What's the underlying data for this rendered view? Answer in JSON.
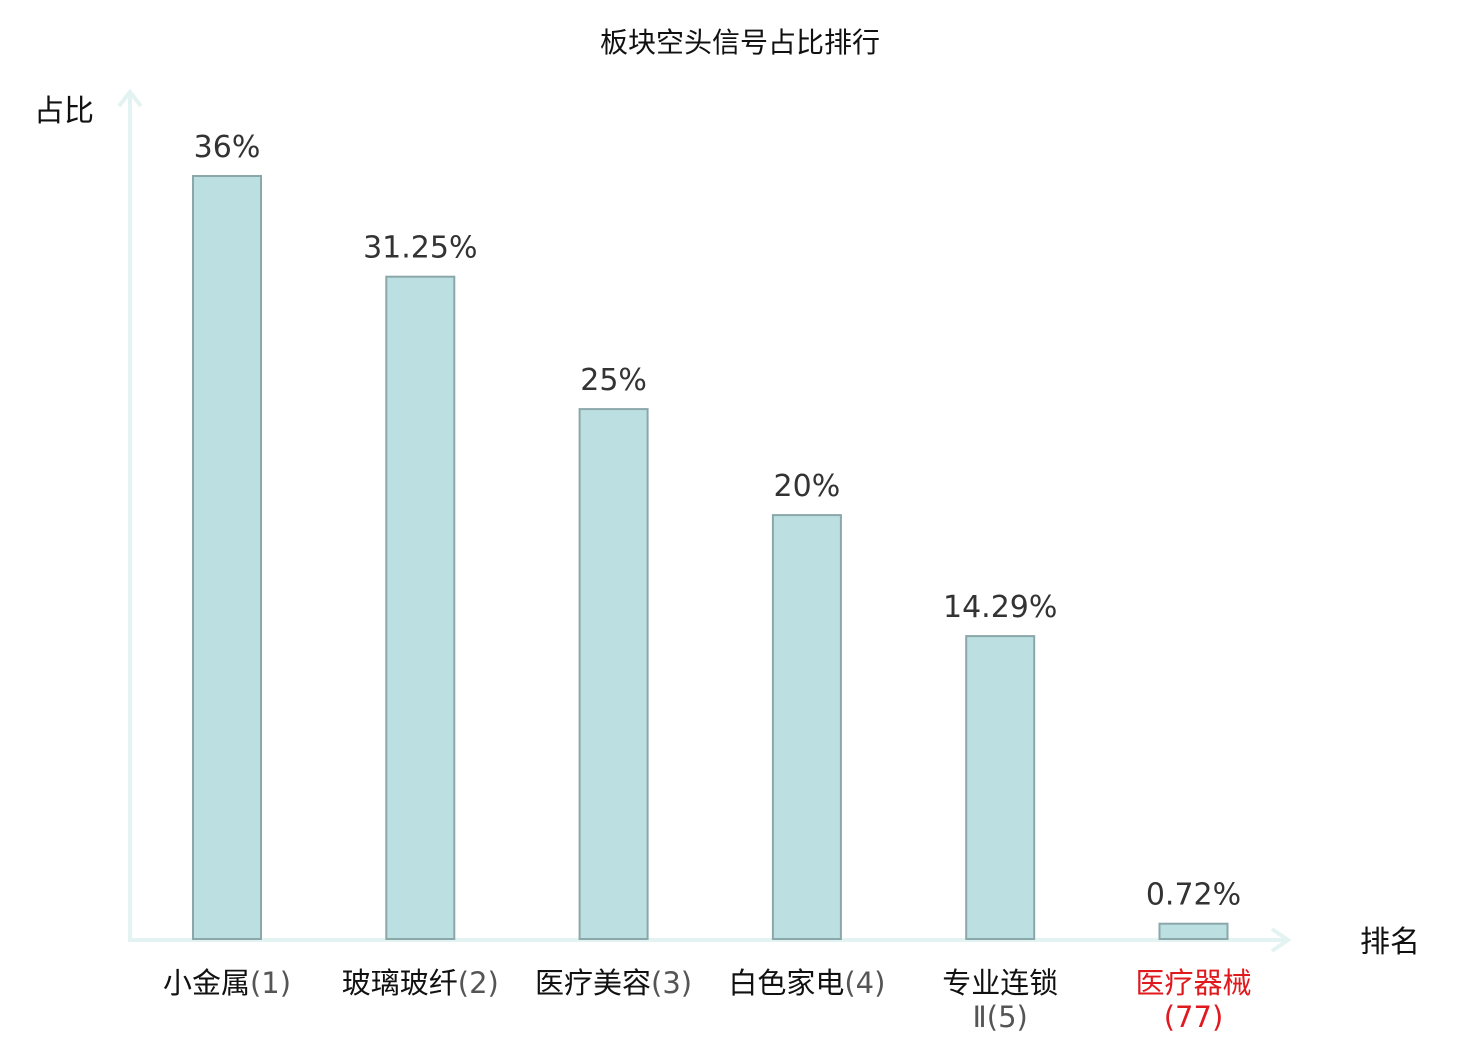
{
  "chart_data": {
    "type": "bar",
    "title": "板块空头信号占比排行",
    "ylabel": "占比",
    "xlabel": "排名",
    "categories": [
      {
        "name": "小金属",
        "rank": "(1)"
      },
      {
        "name": "玻璃玻纤",
        "rank": "(2)"
      },
      {
        "name": "医疗美容",
        "rank": "(3)"
      },
      {
        "name": "白色家电",
        "rank": "(4)"
      },
      {
        "name": "专业连锁",
        "rank": "Ⅱ(5)"
      },
      {
        "name": "医疗器械",
        "rank": "(77)",
        "highlight": true
      }
    ],
    "values": [
      36,
      31.25,
      25,
      20,
      14.29,
      0.72
    ],
    "value_labels": [
      "36%",
      "31.25%",
      "25%",
      "20%",
      "14.29%",
      "0.72%"
    ],
    "ylim": [
      0,
      36
    ],
    "grid": false,
    "colors": {
      "bar_fill": "#bce0e2",
      "bar_stroke": "#8aa7aa",
      "axis": "#e2f3f1",
      "highlight": "#e0191e"
    }
  }
}
